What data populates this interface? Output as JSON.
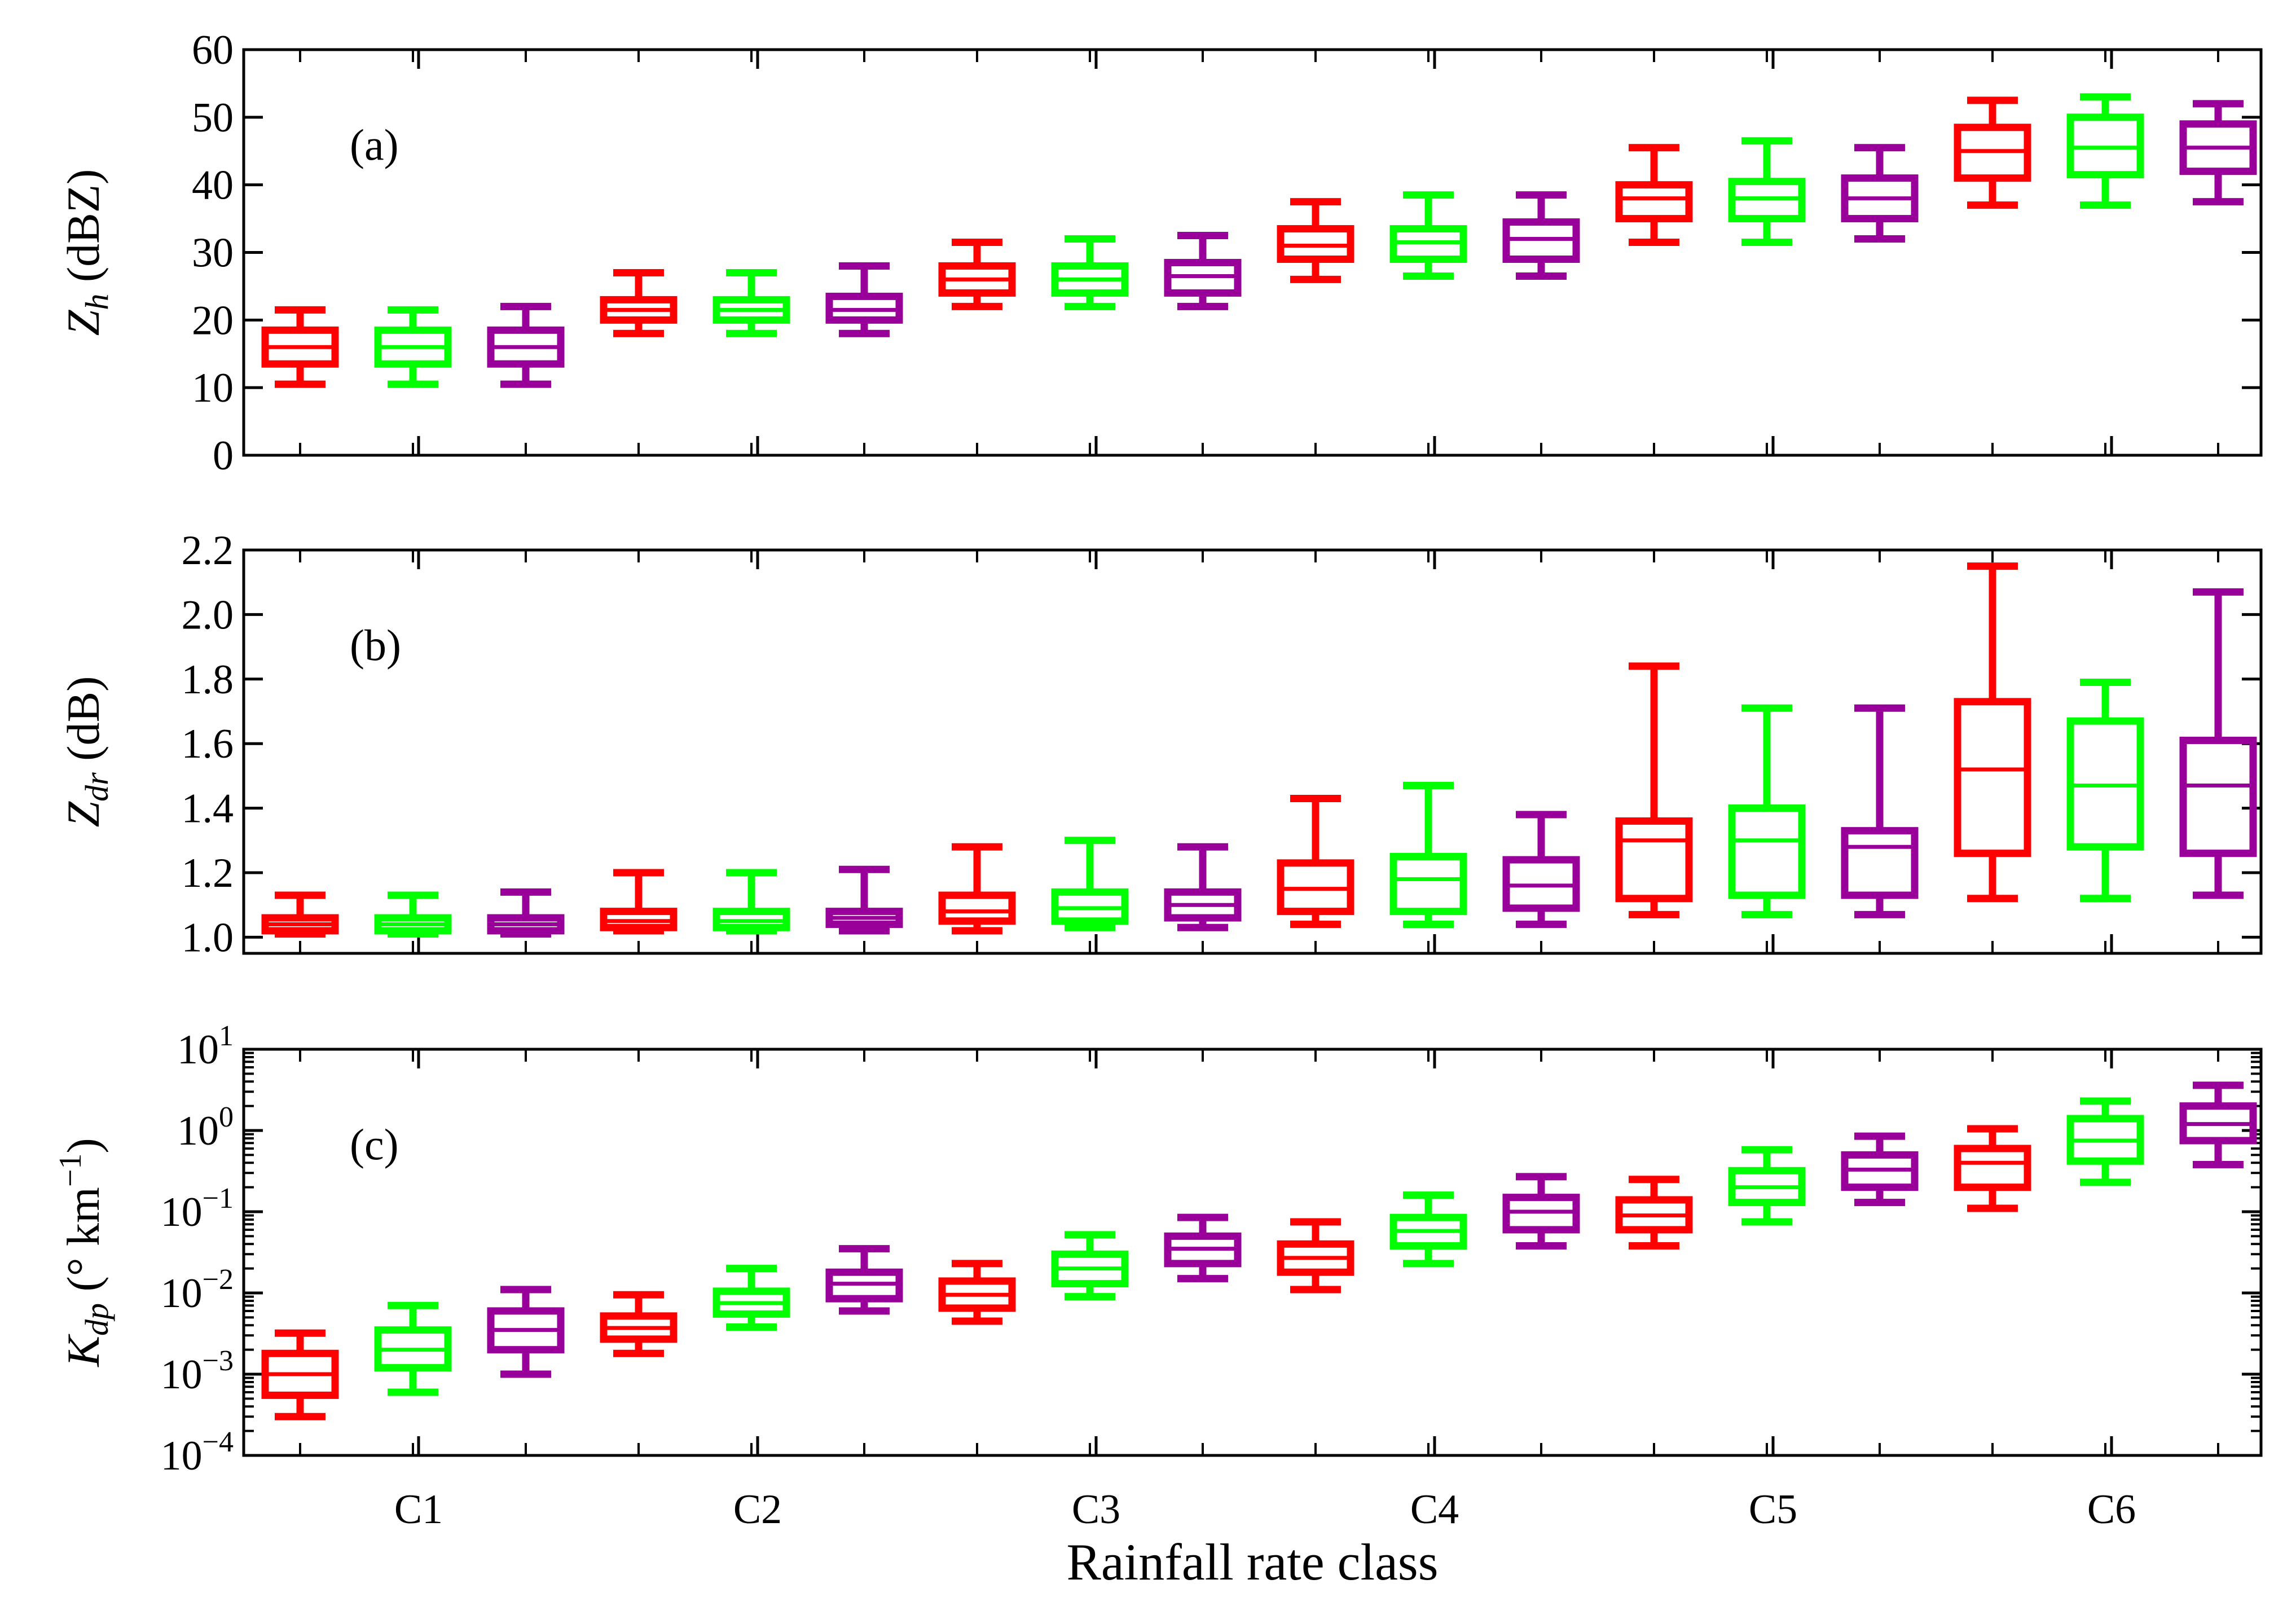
{
  "chart_data": [
    {
      "type": "box",
      "panel_label": "(a)",
      "ylabel": {
        "symbol": "Z",
        "subscript": "h",
        "unit": " (dBZ)"
      },
      "ylim": [
        0,
        60
      ],
      "yscale": "linear",
      "yticks": [
        0,
        10,
        20,
        30,
        40,
        50,
        60
      ],
      "ytick_labels": [
        "0",
        "10",
        "20",
        "30",
        "40",
        "50",
        "60"
      ],
      "colors": [
        "#ff0000",
        "#00ff00",
        "#990099"
      ],
      "boxes": [
        [
          10.5,
          13.5,
          16,
          18.5,
          21.5
        ],
        [
          10.5,
          13.5,
          16,
          18.5,
          21.5
        ],
        [
          10.5,
          13.5,
          16,
          18.5,
          22
        ],
        [
          18,
          20,
          21.5,
          23,
          27
        ],
        [
          18,
          20,
          21.5,
          23,
          27
        ],
        [
          18,
          20,
          21.5,
          23.5,
          28
        ],
        [
          22,
          24,
          26,
          28,
          31.5
        ],
        [
          22,
          24,
          26,
          28,
          32
        ],
        [
          22,
          24,
          26.5,
          28.5,
          32.5
        ],
        [
          26,
          29,
          31,
          33.5,
          37.5
        ],
        [
          26.5,
          29,
          31.5,
          33.5,
          38.5
        ],
        [
          26.5,
          29,
          32,
          34.5,
          38.5
        ],
        [
          31.5,
          35,
          38,
          40,
          45.5
        ],
        [
          31.5,
          35,
          38,
          40.5,
          46.5
        ],
        [
          32,
          35,
          38,
          41,
          45.5
        ],
        [
          37,
          41,
          45,
          48.5,
          52.5
        ],
        [
          37,
          41.5,
          45.5,
          50,
          53
        ],
        [
          37.5,
          42,
          45.5,
          49,
          52
        ]
      ]
    },
    {
      "type": "box",
      "panel_label": "(b)",
      "ylabel": {
        "symbol": "Z",
        "subscript": "dr",
        "unit": " (dB)"
      },
      "ylim": [
        0.95,
        2.2
      ],
      "yscale": "linear",
      "yticks": [
        1.0,
        1.2,
        1.4,
        1.6,
        1.8,
        2.0,
        2.2
      ],
      "ytick_labels": [
        "1.0",
        "1.2",
        "1.4",
        "1.6",
        "1.8",
        "2.0",
        "2.2"
      ],
      "colors": [
        "#ff0000",
        "#00ff00",
        "#990099"
      ],
      "boxes": [
        [
          1.01,
          1.02,
          1.04,
          1.06,
          1.13
        ],
        [
          1.01,
          1.02,
          1.04,
          1.06,
          1.13
        ],
        [
          1.01,
          1.02,
          1.04,
          1.06,
          1.14
        ],
        [
          1.02,
          1.03,
          1.05,
          1.08,
          1.2
        ],
        [
          1.02,
          1.03,
          1.05,
          1.08,
          1.2
        ],
        [
          1.02,
          1.04,
          1.06,
          1.08,
          1.21
        ],
        [
          1.02,
          1.05,
          1.08,
          1.13,
          1.28
        ],
        [
          1.03,
          1.05,
          1.09,
          1.14,
          1.3
        ],
        [
          1.03,
          1.06,
          1.1,
          1.14,
          1.28
        ],
        [
          1.04,
          1.08,
          1.15,
          1.23,
          1.43
        ],
        [
          1.04,
          1.08,
          1.18,
          1.25,
          1.47
        ],
        [
          1.04,
          1.09,
          1.16,
          1.24,
          1.38
        ],
        [
          1.07,
          1.12,
          1.3,
          1.36,
          1.84
        ],
        [
          1.07,
          1.13,
          1.3,
          1.4,
          1.71
        ],
        [
          1.07,
          1.13,
          1.28,
          1.33,
          1.71
        ],
        [
          1.12,
          1.26,
          1.52,
          1.73,
          2.15
        ],
        [
          1.12,
          1.28,
          1.47,
          1.67,
          1.79
        ],
        [
          1.13,
          1.26,
          1.47,
          1.61,
          2.07
        ]
      ]
    },
    {
      "type": "box",
      "panel_label": "(c)",
      "ylabel": {
        "symbol": "K",
        "subscript": "dp",
        "unit": " (° km",
        "unit_sup": "−1",
        "unit_end": ")"
      },
      "ylim": [
        0.0001,
        10
      ],
      "yscale": "log",
      "yticks": [
        0.0001,
        0.001,
        0.01,
        0.1,
        1,
        10
      ],
      "ytick_labels": [
        {
          "base": "10",
          "exp": "−4"
        },
        {
          "base": "10",
          "exp": "−3"
        },
        {
          "base": "10",
          "exp": "−2"
        },
        {
          "base": "10",
          "exp": "−1"
        },
        {
          "base": "10",
          "exp": "0"
        },
        {
          "base": "10",
          "exp": "1"
        }
      ],
      "colors": [
        "#ff0000",
        "#00ff00",
        "#990099"
      ],
      "boxes": [
        [
          0.0003,
          0.00055,
          0.001,
          0.0018,
          0.0032
        ],
        [
          0.0006,
          0.0012,
          0.002,
          0.0035,
          0.007
        ],
        [
          0.001,
          0.002,
          0.0035,
          0.006,
          0.011
        ],
        [
          0.0018,
          0.0027,
          0.0037,
          0.0052,
          0.0095
        ],
        [
          0.0038,
          0.0055,
          0.0075,
          0.0105,
          0.02
        ],
        [
          0.006,
          0.0085,
          0.013,
          0.018,
          0.035
        ],
        [
          0.0045,
          0.0065,
          0.0095,
          0.014,
          0.023
        ],
        [
          0.009,
          0.013,
          0.02,
          0.03,
          0.052
        ],
        [
          0.015,
          0.023,
          0.035,
          0.05,
          0.085
        ],
        [
          0.011,
          0.018,
          0.027,
          0.04,
          0.075
        ],
        [
          0.023,
          0.038,
          0.058,
          0.085,
          0.16
        ],
        [
          0.038,
          0.06,
          0.1,
          0.15,
          0.27
        ],
        [
          0.038,
          0.06,
          0.09,
          0.14,
          0.25
        ],
        [
          0.075,
          0.13,
          0.2,
          0.32,
          0.58
        ],
        [
          0.13,
          0.2,
          0.33,
          0.5,
          0.85
        ],
        [
          0.11,
          0.2,
          0.4,
          0.6,
          1.05
        ],
        [
          0.23,
          0.42,
          0.75,
          1.4,
          2.3
        ],
        [
          0.38,
          0.75,
          1.2,
          2.0,
          3.6
        ]
      ]
    }
  ],
  "xaxis": {
    "categories": [
      "C1",
      "C2",
      "C3",
      "C4",
      "C5",
      "C6"
    ],
    "xlabel": "Rainfall rate class"
  }
}
